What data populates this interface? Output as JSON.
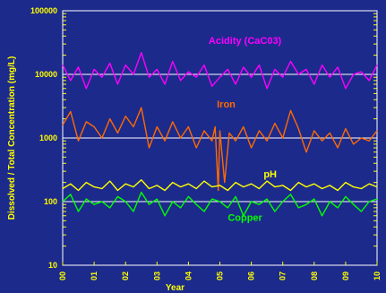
{
  "chart_data": {
    "type": "line",
    "title": "",
    "xlabel": "Year",
    "ylabel": "Dissolved / Total Concentration (mg/L)",
    "y_scale": "log",
    "ylim": [
      10,
      100000
    ],
    "xlim": [
      2000,
      2010
    ],
    "y_ticks": [
      "100000",
      "10000",
      "1000",
      "100",
      "10"
    ],
    "x_ticks": [
      "00",
      "01",
      "02",
      "03",
      "04",
      "05",
      "06",
      "07",
      "08",
      "09",
      "10"
    ],
    "grid": true,
    "colors": {
      "background": "#1c2a8c",
      "plot_background": "#1c2a8c",
      "grid": "#ffffff",
      "text": "#ffff00"
    },
    "series": [
      {
        "name": "Acidity (CaC03)",
        "color": "#ff00ff",
        "x": [
          2000.0,
          2000.25,
          2000.5,
          2000.75,
          2001.0,
          2001.25,
          2001.5,
          2001.75,
          2002.0,
          2002.25,
          2002.5,
          2002.75,
          2003.0,
          2003.25,
          2003.5,
          2003.75,
          2004.0,
          2004.25,
          2004.5,
          2004.75,
          2005.0,
          2005.25,
          2005.5,
          2005.75,
          2006.0,
          2006.25,
          2006.5,
          2006.75,
          2007.0,
          2007.25,
          2007.5,
          2007.75,
          2008.0,
          2008.25,
          2008.5,
          2008.75,
          2009.0,
          2009.25,
          2009.5,
          2009.75,
          2010.0
        ],
        "values": [
          14000,
          8000,
          13000,
          6000,
          12000,
          9000,
          15000,
          7000,
          14000,
          10000,
          22000,
          9000,
          12000,
          7000,
          16000,
          8000,
          11000,
          9000,
          14000,
          6500,
          9000,
          12000,
          7000,
          13000,
          9000,
          14000,
          6000,
          12000,
          9000,
          16000,
          10000,
          12000,
          7000,
          14000,
          9000,
          13000,
          6000,
          10000,
          11000,
          8000,
          14000
        ]
      },
      {
        "name": "Iron",
        "color": "#ff6a00",
        "x": [
          2000.0,
          2000.25,
          2000.5,
          2000.75,
          2001.0,
          2001.25,
          2001.5,
          2001.75,
          2002.0,
          2002.25,
          2002.5,
          2002.75,
          2003.0,
          2003.25,
          2003.5,
          2003.75,
          2004.0,
          2004.25,
          2004.5,
          2004.75,
          2004.85,
          2004.95,
          2005.0,
          2005.15,
          2005.3,
          2005.5,
          2005.75,
          2006.0,
          2006.25,
          2006.5,
          2006.75,
          2007.0,
          2007.25,
          2007.5,
          2007.75,
          2008.0,
          2008.25,
          2008.5,
          2008.75,
          2009.0,
          2009.25,
          2009.5,
          2009.75,
          2010.0
        ],
        "values": [
          1600,
          2600,
          900,
          1800,
          1500,
          1000,
          2000,
          1200,
          2200,
          1500,
          3000,
          700,
          1500,
          900,
          1800,
          1000,
          1500,
          700,
          1300,
          900,
          1500,
          150,
          1300,
          200,
          1200,
          900,
          1500,
          700,
          1300,
          900,
          1700,
          1000,
          2700,
          1400,
          600,
          1300,
          900,
          1200,
          700,
          1400,
          800,
          1000,
          900,
          1300
        ]
      },
      {
        "name": "pH",
        "color": "#ffff00",
        "x": [
          2000.0,
          2000.25,
          2000.5,
          2000.75,
          2001.0,
          2001.25,
          2001.5,
          2001.75,
          2002.0,
          2002.25,
          2002.5,
          2002.75,
          2003.0,
          2003.25,
          2003.5,
          2003.75,
          2004.0,
          2004.25,
          2004.5,
          2004.75,
          2005.0,
          2005.25,
          2005.5,
          2005.75,
          2006.0,
          2006.25,
          2006.5,
          2006.75,
          2007.0,
          2007.25,
          2007.5,
          2007.75,
          2008.0,
          2008.25,
          2008.5,
          2008.75,
          2009.0,
          2009.25,
          2009.5,
          2009.75,
          2010.0
        ],
        "values": [
          160,
          190,
          150,
          200,
          170,
          160,
          210,
          150,
          190,
          170,
          220,
          160,
          180,
          150,
          200,
          170,
          190,
          160,
          210,
          170,
          180,
          150,
          200,
          170,
          190,
          160,
          210,
          170,
          180,
          150,
          200,
          170,
          190,
          160,
          180,
          150,
          200,
          170,
          160,
          190,
          170
        ]
      },
      {
        "name": "Copper",
        "color": "#00ff00",
        "x": [
          2000.0,
          2000.25,
          2000.5,
          2000.75,
          2001.0,
          2001.25,
          2001.5,
          2001.75,
          2002.0,
          2002.25,
          2002.5,
          2002.75,
          2003.0,
          2003.25,
          2003.5,
          2003.75,
          2004.0,
          2004.25,
          2004.5,
          2004.75,
          2005.0,
          2005.25,
          2005.5,
          2005.75,
          2006.0,
          2006.25,
          2006.5,
          2006.75,
          2007.0,
          2007.25,
          2007.5,
          2007.75,
          2008.0,
          2008.25,
          2008.5,
          2008.75,
          2009.0,
          2009.25,
          2009.5,
          2009.75,
          2010.0
        ],
        "values": [
          100,
          130,
          70,
          110,
          90,
          100,
          80,
          120,
          100,
          70,
          140,
          90,
          110,
          60,
          100,
          80,
          120,
          90,
          70,
          110,
          100,
          80,
          120,
          60,
          100,
          90,
          110,
          70,
          100,
          130,
          80,
          90,
          110,
          60,
          100,
          80,
          120,
          90,
          70,
          100,
          110
        ]
      }
    ],
    "annotations": [
      {
        "text": "Acidity (CaC03)",
        "series": 0,
        "x": 2005.8,
        "y": 30000,
        "color": "#ff00ff"
      },
      {
        "text": "Iron",
        "series": 1,
        "x": 2005.2,
        "y": 3000,
        "color": "#ff6a00"
      },
      {
        "text": "pH",
        "series": 2,
        "x": 2006.6,
        "y": 240,
        "color": "#ffff00"
      },
      {
        "text": "Copper",
        "series": 3,
        "x": 2005.8,
        "y": 50,
        "color": "#00ff00"
      }
    ]
  }
}
